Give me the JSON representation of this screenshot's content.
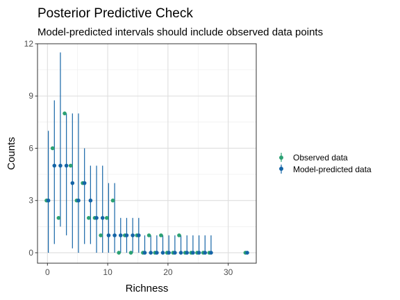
{
  "chart_data": {
    "type": "scatter",
    "title": "Posterior Predictive Check",
    "subtitle": "Model-predicted intervals should include observed data points",
    "xlabel": "Richness",
    "ylabel": "Counts",
    "xlim": [
      -1.65,
      34.65
    ],
    "ylim": [
      -0.6,
      12
    ],
    "xticks": [
      0,
      10,
      20,
      30
    ],
    "yticks": [
      0,
      3,
      6,
      9,
      12
    ],
    "grid": true,
    "legend_position": "right",
    "colors": {
      "observed": "#2ca173",
      "predicted": "#1464a6"
    },
    "series": [
      {
        "name": "Observed data",
        "marker": "point",
        "points": [
          {
            "x": 0,
            "y": 3
          },
          {
            "x": 1,
            "y": 6
          },
          {
            "x": 2,
            "y": 2
          },
          {
            "x": 3,
            "y": 8
          },
          {
            "x": 4,
            "y": 5
          },
          {
            "x": 5,
            "y": 3
          },
          {
            "x": 6,
            "y": 4
          },
          {
            "x": 7,
            "y": 2
          },
          {
            "x": 8,
            "y": 2
          },
          {
            "x": 9,
            "y": 1
          },
          {
            "x": 10,
            "y": 2
          },
          {
            "x": 11,
            "y": 3
          },
          {
            "x": 12,
            "y": 0
          },
          {
            "x": 13,
            "y": 1
          },
          {
            "x": 14,
            "y": 0
          },
          {
            "x": 15,
            "y": 1
          },
          {
            "x": 16,
            "y": 0
          },
          {
            "x": 17,
            "y": 1
          },
          {
            "x": 18,
            "y": 0
          },
          {
            "x": 19,
            "y": 1
          },
          {
            "x": 20,
            "y": 0
          },
          {
            "x": 21,
            "y": 0
          },
          {
            "x": 22,
            "y": 1
          },
          {
            "x": 23,
            "y": 0
          },
          {
            "x": 24,
            "y": 0
          },
          {
            "x": 25,
            "y": 0
          },
          {
            "x": 26,
            "y": 0
          },
          {
            "x": 27,
            "y": 0
          },
          {
            "x": 33,
            "y": 0
          }
        ]
      },
      {
        "name": "Model-predicted data",
        "marker": "pointrange",
        "points": [
          {
            "x": 0,
            "y": 3,
            "lo": 0,
            "hi": 7
          },
          {
            "x": 1,
            "y": 5,
            "lo": 0.5,
            "hi": 8.75
          },
          {
            "x": 2,
            "y": 5,
            "lo": 1.5,
            "hi": 11.5
          },
          {
            "x": 3,
            "y": 5,
            "lo": 1,
            "hi": 8
          },
          {
            "x": 4,
            "y": 4,
            "lo": 0.25,
            "hi": 8
          },
          {
            "x": 5,
            "y": 3,
            "lo": 0,
            "hi": 8
          },
          {
            "x": 6,
            "y": 4,
            "lo": 0.5,
            "hi": 6
          },
          {
            "x": 7,
            "y": 3,
            "lo": 0.5,
            "hi": 5
          },
          {
            "x": 8,
            "y": 2,
            "lo": 0,
            "hi": 5
          },
          {
            "x": 9,
            "y": 2,
            "lo": 0,
            "hi": 5
          },
          {
            "x": 10,
            "y": 1,
            "lo": 0,
            "hi": 4
          },
          {
            "x": 11,
            "y": 1,
            "lo": 0,
            "hi": 4
          },
          {
            "x": 12,
            "y": 1,
            "lo": 0,
            "hi": 2
          },
          {
            "x": 13,
            "y": 1,
            "lo": 0,
            "hi": 2
          },
          {
            "x": 14,
            "y": 1,
            "lo": 0,
            "hi": 2
          },
          {
            "x": 15,
            "y": 1,
            "lo": 0,
            "hi": 2
          },
          {
            "x": 16,
            "y": 0,
            "lo": 0,
            "hi": 1
          },
          {
            "x": 17,
            "y": 0,
            "lo": 0,
            "hi": 1
          },
          {
            "x": 18,
            "y": 0,
            "lo": 0,
            "hi": 1
          },
          {
            "x": 19,
            "y": 0,
            "lo": 0,
            "hi": 1
          },
          {
            "x": 20,
            "y": 0,
            "lo": 0,
            "hi": 1
          },
          {
            "x": 21,
            "y": 0,
            "lo": 0,
            "hi": 1
          },
          {
            "x": 22,
            "y": 0,
            "lo": 0,
            "hi": 1
          },
          {
            "x": 23,
            "y": 0,
            "lo": 0,
            "hi": 1
          },
          {
            "x": 24,
            "y": 0,
            "lo": 0,
            "hi": 1
          },
          {
            "x": 25,
            "y": 0,
            "lo": 0,
            "hi": 1
          },
          {
            "x": 26,
            "y": 0,
            "lo": 0,
            "hi": 1
          },
          {
            "x": 27,
            "y": 0,
            "lo": 0,
            "hi": 1
          },
          {
            "x": 33,
            "y": 0,
            "lo": 0,
            "hi": 0
          }
        ]
      }
    ]
  }
}
